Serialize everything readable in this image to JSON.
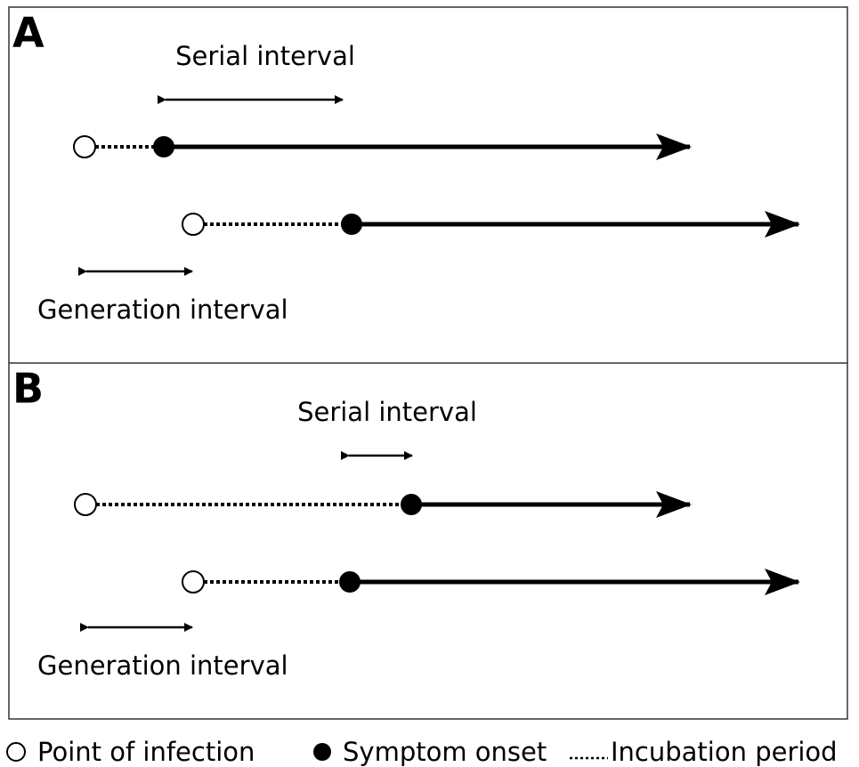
{
  "panels": [
    {
      "label": "A",
      "serial_interval": "Serial interval",
      "generation_interval": "Generation interval"
    },
    {
      "label": "B",
      "serial_interval": "Serial interval",
      "generation_interval": "Generation interval"
    }
  ],
  "legend": {
    "infection": "Point of infection",
    "onset": "Symptom onset",
    "incubation": "Incubation period"
  }
}
